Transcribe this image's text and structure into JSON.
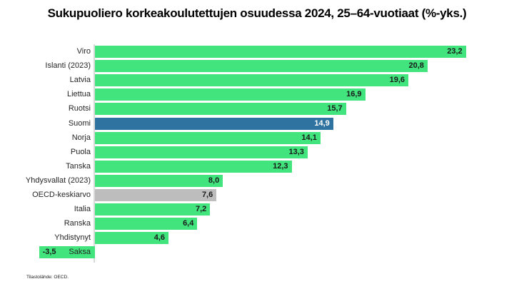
{
  "title": "Sukupuoliero korkeakoulutettujen osuudessa 2024, 25–64-vuotiaat (%-yks.)",
  "footer": "Tilastolähde: OECD.",
  "colors": {
    "bar_default": "#41e47d",
    "bar_highlight": "#2f74a0",
    "bar_neutral": "#bdbdbd",
    "value_label": "#1a1a1a",
    "value_label_on_highlight": "#ffffff",
    "axis_line": "#d9d9d9"
  },
  "chart_data": {
    "type": "bar",
    "orientation": "horizontal",
    "title": "Sukupuoliero korkeakoulutettujen osuudessa 2024, 25–64-vuotiaat (%-yks.)",
    "categories": [
      "Viro",
      "Islanti (2023)",
      "Latvia",
      "Liettua",
      "Ruotsi",
      "Suomi",
      "Norja",
      "Puola",
      "Tanska",
      "Yhdysvallat (2023)",
      "OECD-keskiarvo",
      "Italia",
      "Ranska",
      "Yhdistynyt",
      "Saksa"
    ],
    "values": [
      23.2,
      20.8,
      19.6,
      16.9,
      15.7,
      14.9,
      14.1,
      13.3,
      12.3,
      8.0,
      7.6,
      7.2,
      6.4,
      4.6,
      -3.5
    ],
    "value_labels": [
      "23,2",
      "20,8",
      "19,6",
      "16,9",
      "15,7",
      "14,9",
      "14,1",
      "13,3",
      "12,3",
      "8,0",
      "7,6",
      "7,2",
      "6,4",
      "4,6",
      "-3,5"
    ],
    "highlight_category": "Suomi",
    "neutral_category": "OECD-keskiarvo",
    "xlim": [
      -4,
      26
    ],
    "grid": false,
    "legend": false,
    "source": "Tilastolähde: OECD."
  }
}
